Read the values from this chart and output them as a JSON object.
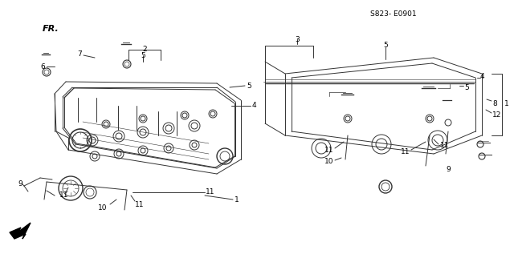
{
  "bg_color": "#ffffff",
  "line_color": "#333333",
  "code": "S823- E0901",
  "fr_label": "FR."
}
